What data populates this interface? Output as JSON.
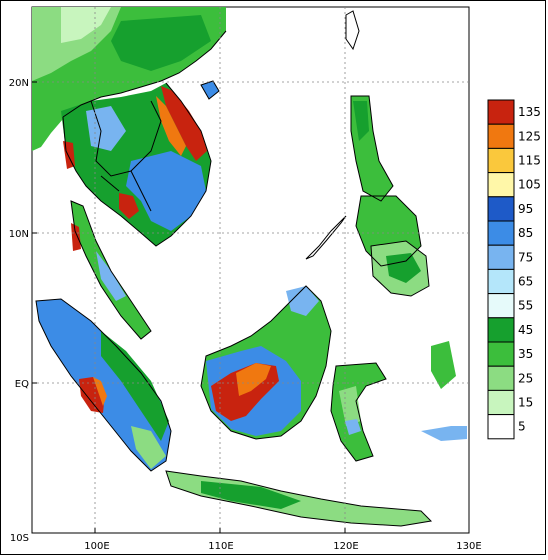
{
  "map": {
    "lat_labels": [
      "20N",
      "10N",
      "EQ",
      "10S"
    ],
    "lon_labels": [
      "100E",
      "110E",
      "120E",
      "130E"
    ],
    "lon_range": [
      95,
      130
    ],
    "lat_range": [
      -10,
      25
    ]
  },
  "legend": {
    "bins": [
      {
        "label": "135",
        "color": "#c8230f"
      },
      {
        "label": "125",
        "color": "#f07810"
      },
      {
        "label": "115",
        "color": "#fac83c"
      },
      {
        "label": "105",
        "color": "#fff7a8"
      },
      {
        "label": "95",
        "color": "#1e5ac8"
      },
      {
        "label": "85",
        "color": "#3c8ce6"
      },
      {
        "label": "75",
        "color": "#78b4f0"
      },
      {
        "label": "65",
        "color": "#b4e6fa"
      },
      {
        "label": "55",
        "color": "#e6fafa"
      },
      {
        "label": "45",
        "color": "#16a02e"
      },
      {
        "label": "35",
        "color": "#3cbe3c"
      },
      {
        "label": "25",
        "color": "#8cdc82"
      },
      {
        "label": "15",
        "color": "#c8f5be"
      },
      {
        "label": "5",
        "color": "#ffffff"
      }
    ]
  }
}
